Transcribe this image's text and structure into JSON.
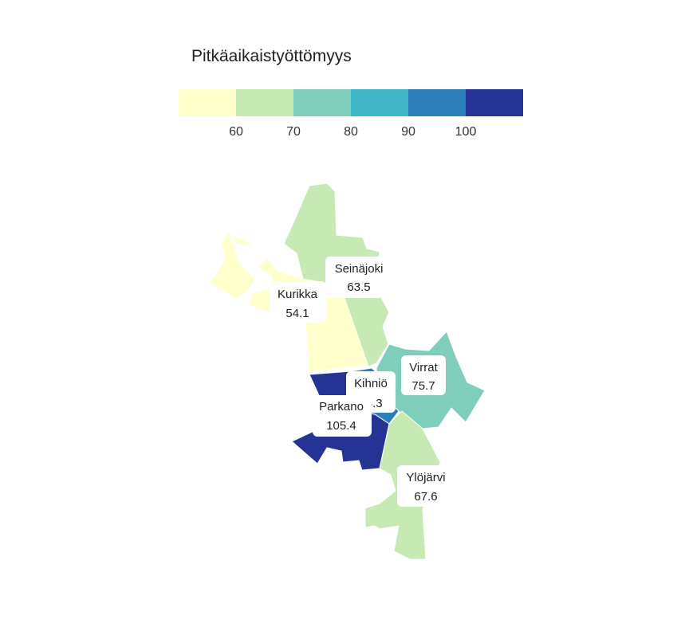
{
  "legend": {
    "title": "Pitkäaikaistyöttömyys",
    "colors": [
      "#ffffcc",
      "#c7e9b4",
      "#7fcdbb",
      "#41b6c4",
      "#2c7fb8",
      "#253494"
    ],
    "ticks": [
      "60",
      "70",
      "80",
      "90",
      "100"
    ]
  },
  "regions": [
    {
      "name": "Kurikka",
      "value": "54.1",
      "color": "#ffffcc"
    },
    {
      "name": "Seinäjoki",
      "value": "63.5",
      "color": "#c7e9b4"
    },
    {
      "name": "Virrat",
      "value": "75.7",
      "color": "#7fcdbb"
    },
    {
      "name": "Kihniö",
      "value": "93.3",
      "color": "#2c7fb8"
    },
    {
      "name": "Parkano",
      "value": "105.4",
      "color": "#253494"
    },
    {
      "name": "Ylöjärvi",
      "value": "67.6",
      "color": "#c7e9b4"
    }
  ]
}
